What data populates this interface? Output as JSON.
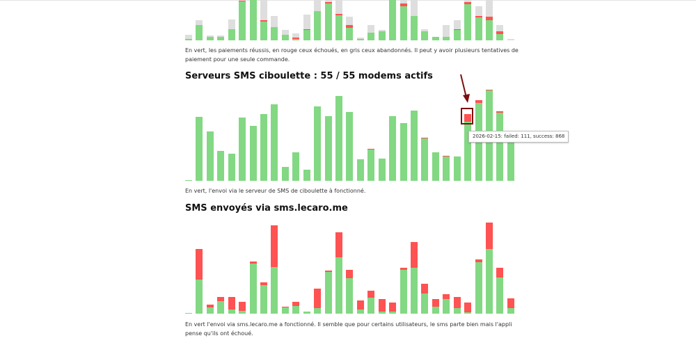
{
  "colors": {
    "success": "#83d883",
    "failed": "#ff5252",
    "abandoned": "#dedede",
    "annotation": "#7a1010"
  },
  "payments": {
    "caption": "En vert, les paiements réussis, en rouge ceux échoués, en gris ceux abandonnés. Il peut y avoir plusieurs tentatives de paiement pour une seule commande.",
    "chart_data": {
      "type": "bar",
      "stacked": true,
      "series_names": [
        "success",
        "failed",
        "abandoned"
      ],
      "success": [
        2,
        22,
        5,
        5,
        16,
        56,
        58,
        27,
        19,
        8,
        2,
        15,
        42,
        53,
        36,
        18,
        2,
        11,
        13,
        58,
        49,
        35,
        13,
        5,
        5,
        15,
        52,
        33,
        29,
        9,
        0
      ],
      "failed": [
        0,
        0,
        0,
        0,
        0,
        1,
        0,
        2,
        0,
        0,
        2,
        1,
        0,
        2,
        2,
        4,
        0,
        0,
        0,
        0,
        4,
        0,
        0,
        0,
        0,
        1,
        3,
        2,
        5,
        4,
        0
      ],
      "abandoned": [
        6,
        7,
        2,
        2,
        14,
        1,
        0,
        29,
        16,
        7,
        6,
        21,
        16,
        3,
        20,
        12,
        2,
        11,
        2,
        0,
        5,
        23,
        3,
        0,
        17,
        13,
        3,
        14,
        24,
        9,
        2
      ]
    }
  },
  "ciboulette": {
    "title": "Serveurs SMS ciboulette : 55 / 55 modems actifs",
    "caption": "En vert, l'envoi via le serveur de SMS de ciboulette à fonctionné.",
    "tooltip": "2026-02-15: failed: 111, success: 868",
    "chart_data": {
      "type": "bar",
      "stacked": true,
      "series_names": [
        "success",
        "failed"
      ],
      "success": [
        10,
        938,
        724,
        439,
        398,
        928,
        806,
        979,
        1122,
        204,
        418,
        163,
        1091,
        949,
        1244,
        1010,
        316,
        459,
        326,
        949,
        847,
        1030,
        622,
        418,
        357,
        357,
        868,
        1142,
        1326,
        1000,
        650
      ],
      "failed": [
        0,
        0,
        0,
        0,
        0,
        0,
        0,
        0,
        0,
        0,
        0,
        0,
        0,
        0,
        0,
        0,
        0,
        10,
        0,
        0,
        0,
        0,
        8,
        0,
        10,
        0,
        111,
        41,
        8,
        20,
        0
      ],
      "highlight_index": 26
    }
  },
  "lecaro": {
    "title": "SMS envoyés via sms.lecaro.me",
    "caption": "En vert l'envoi via sms.lecaro.me a fonctionné. Il semble que pour certains utilisateurs, le sms parte bien mais l'appli pense qu'ils ont échoué.",
    "chart_data": {
      "type": "bar",
      "stacked": true,
      "series_names": [
        "success",
        "failed"
      ],
      "success": [
        1,
        49,
        9,
        18,
        6,
        4,
        72,
        41,
        67,
        9,
        11,
        3,
        8,
        60,
        81,
        51,
        6,
        23,
        3,
        3,
        63,
        66,
        29,
        10,
        21,
        8,
        2,
        74,
        93,
        52,
        8
      ],
      "failed": [
        0,
        44,
        4,
        6,
        18,
        13,
        3,
        4,
        60,
        1,
        6,
        0,
        28,
        2,
        36,
        12,
        13,
        10,
        18,
        13,
        3,
        37,
        14,
        11,
        7,
        16,
        14,
        4,
        38,
        14,
        14
      ]
    }
  }
}
